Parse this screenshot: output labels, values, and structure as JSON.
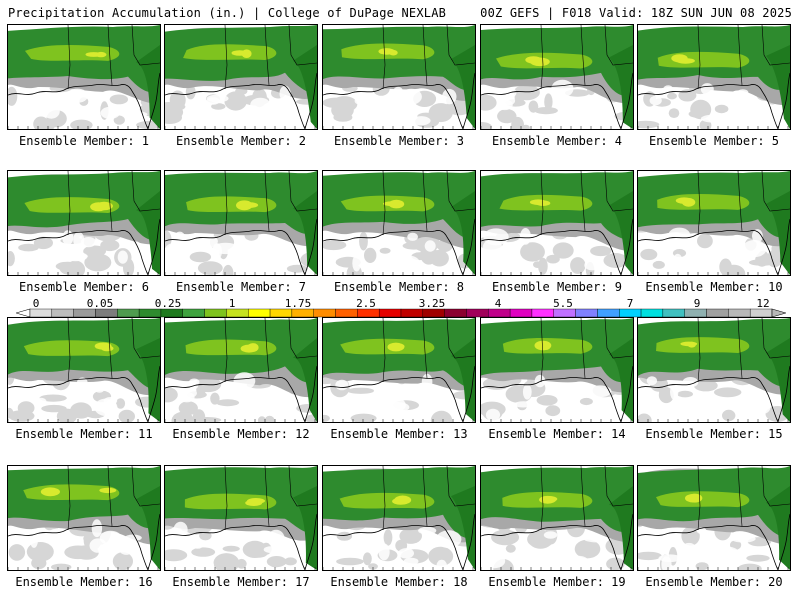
{
  "header": {
    "left": "Precipitation Accumulation (in.) | College of DuPage NEXLAB",
    "right": "00Z GEFS | F018 Valid: 18Z SUN JUN 08 2025"
  },
  "members": [
    "Ensemble Member: 1",
    "Ensemble Member: 2",
    "Ensemble Member: 3",
    "Ensemble Member: 4",
    "Ensemble Member: 5",
    "Ensemble Member: 6",
    "Ensemble Member: 7",
    "Ensemble Member: 8",
    "Ensemble Member: 9",
    "Ensemble Member: 10",
    "Ensemble Member: 11",
    "Ensemble Member: 12",
    "Ensemble Member: 13",
    "Ensemble Member: 14",
    "Ensemble Member: 15",
    "Ensemble Member: 16",
    "Ensemble Member: 17",
    "Ensemble Member: 18",
    "Ensemble Member: 19",
    "Ensemble Member: 20"
  ],
  "colorbar": {
    "labels": [
      "0",
      "0.05",
      "0.25",
      "1",
      "1.75",
      "2.5",
      "3.25",
      "4",
      "5.5",
      "7",
      "9",
      "12"
    ],
    "colors": [
      "#dcdcdc",
      "#bdbdbd",
      "#9b9b9b",
      "#7d7d7d",
      "#4f9b4f",
      "#2e8b2e",
      "#1f7a1f",
      "#3fa33f",
      "#7fc31f",
      "#c6e21f",
      "#ffff00",
      "#ffd700",
      "#ffb000",
      "#ff8c00",
      "#ff6000",
      "#ff3000",
      "#e60000",
      "#c00000",
      "#a00000",
      "#8b0030",
      "#a0005a",
      "#c0008a",
      "#e000c0",
      "#ff30ff",
      "#c070ff",
      "#8080ff",
      "#40a0ff",
      "#00d0ff",
      "#00e0e0",
      "#40c0c0",
      "#8fb0b0",
      "#a0a0a0",
      "#b8b8b8",
      "#d0d0d0"
    ]
  },
  "map_colors": {
    "green": "#2e8b2e",
    "dark_green": "#1f7a1f",
    "light_green": "#7fc31f",
    "yellow": "#d8ea2e",
    "gray": "#a8a8a8",
    "light_gray": "#d6d6d6",
    "coast": "#000000"
  }
}
